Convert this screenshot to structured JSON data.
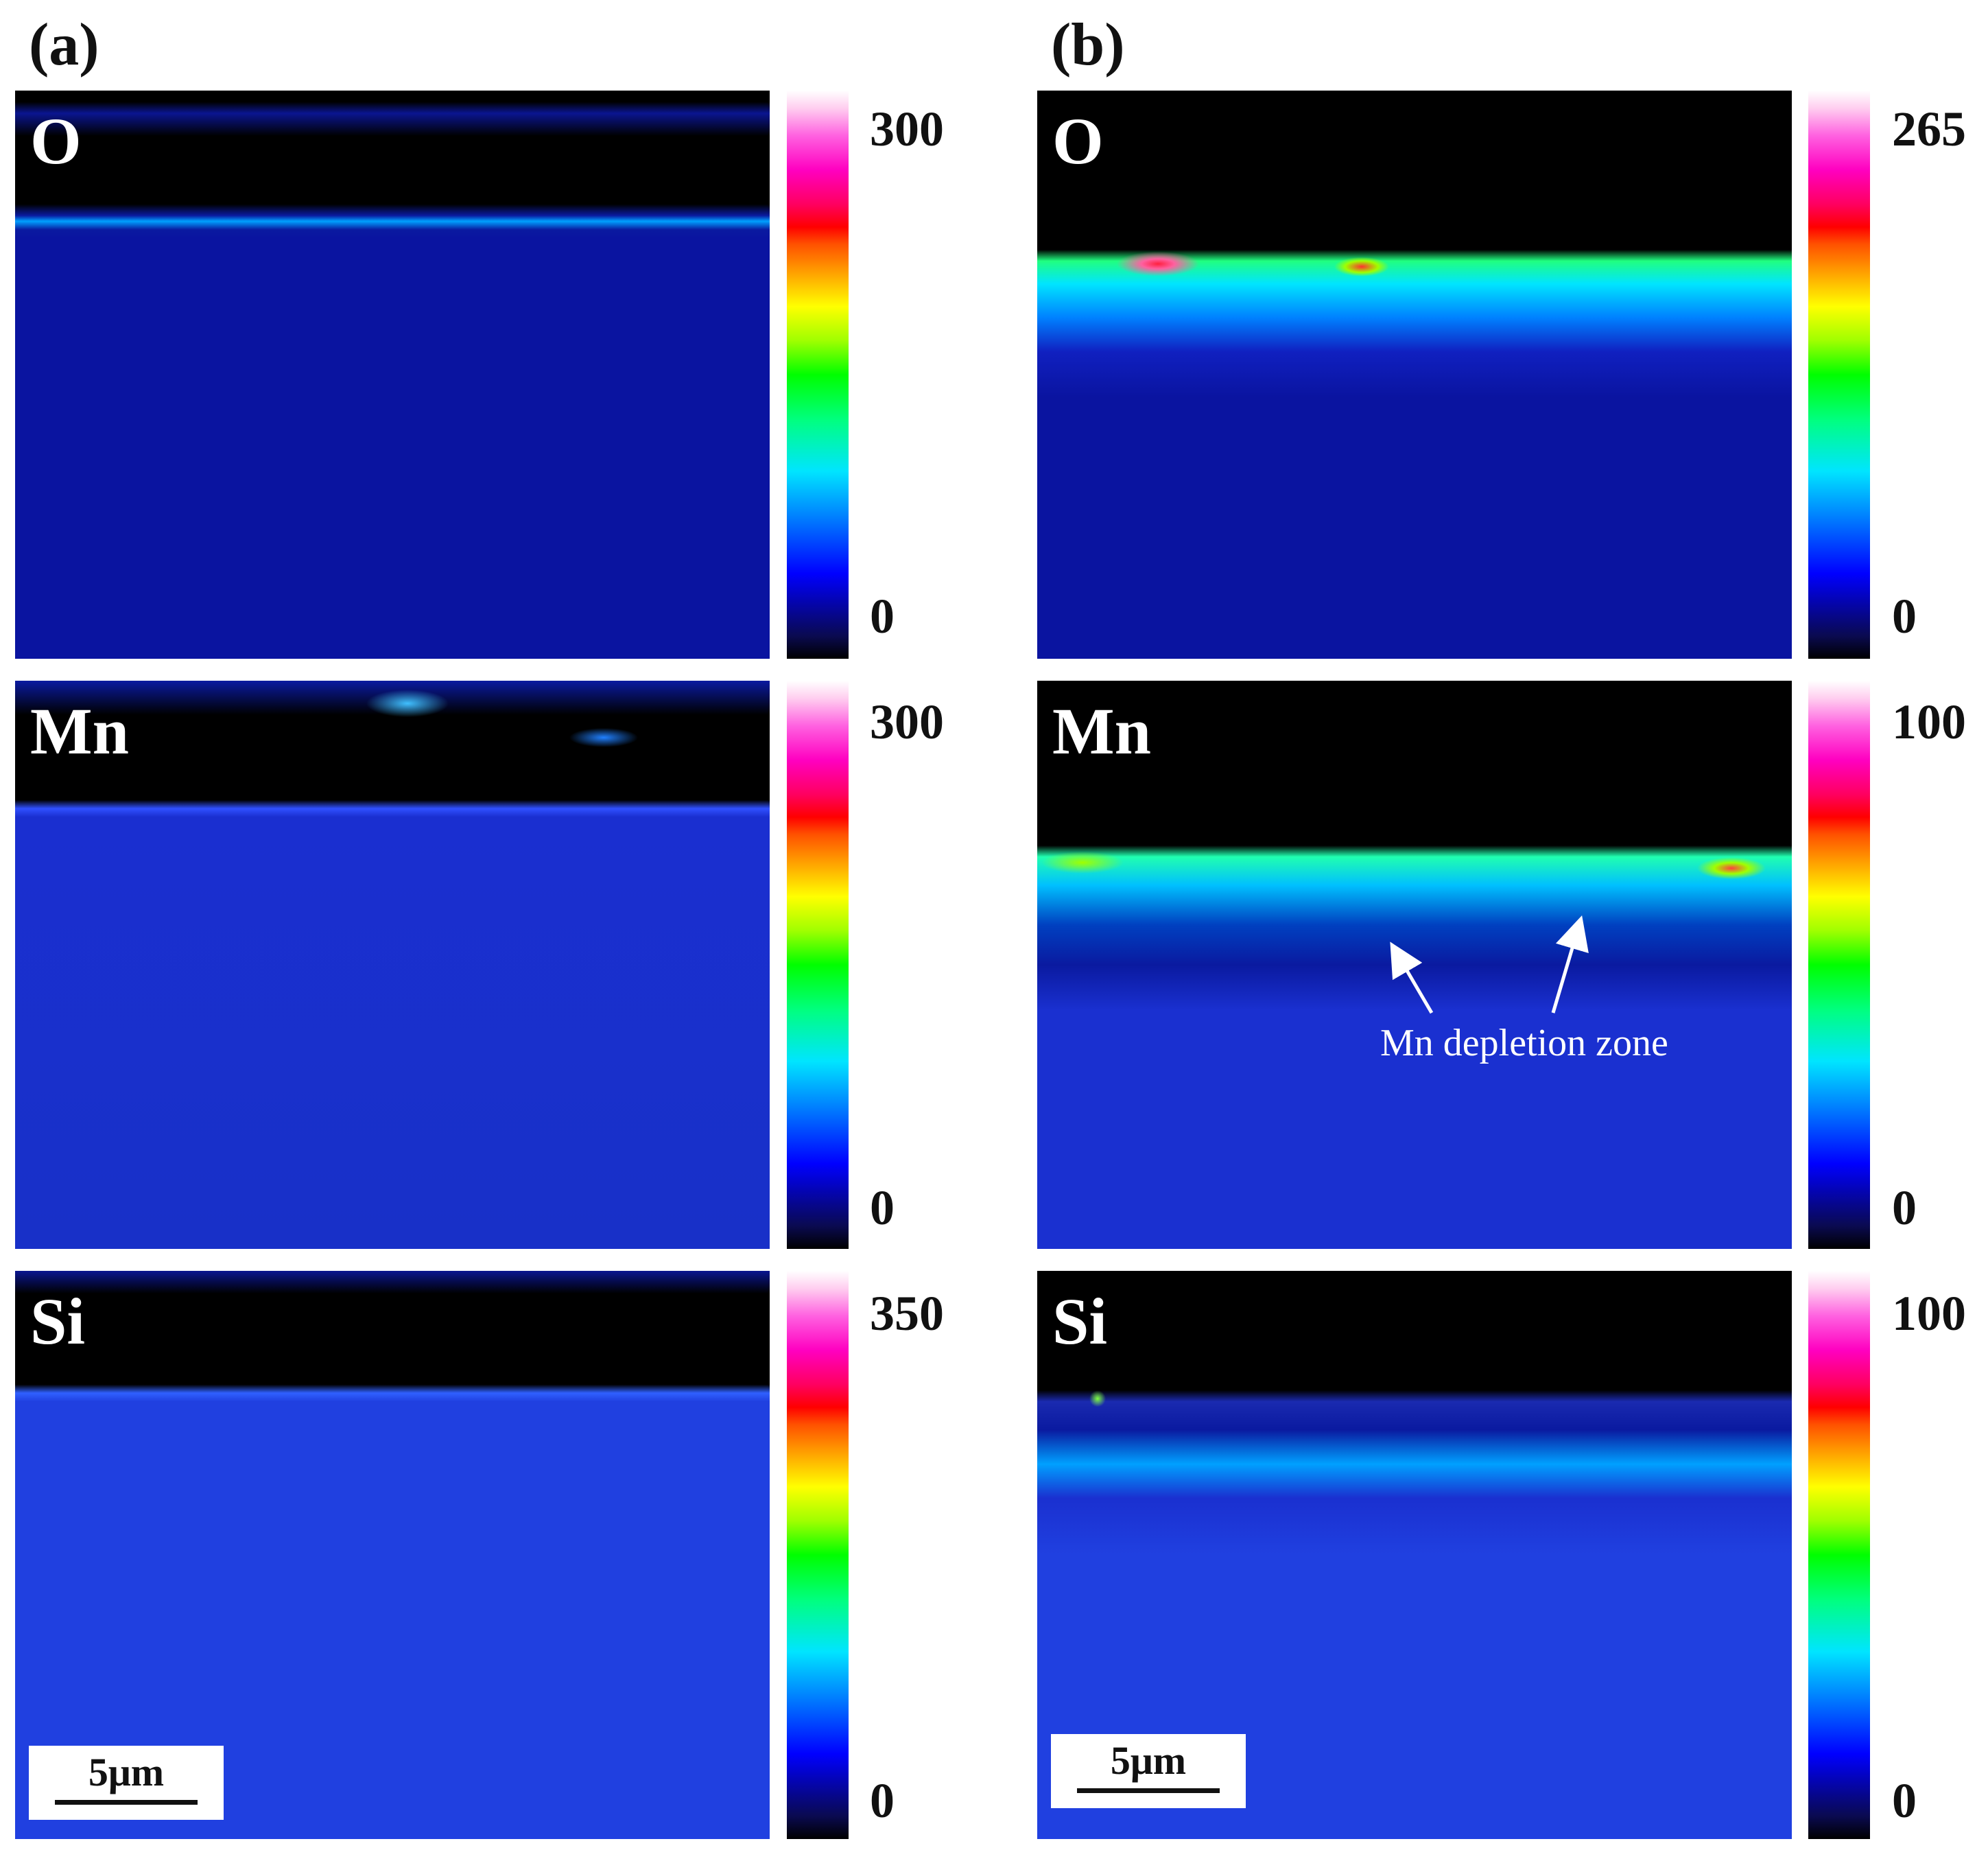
{
  "columns": [
    {
      "label": "(a)"
    },
    {
      "label": "(b)"
    }
  ],
  "panels": {
    "a": [
      {
        "element": "O",
        "cbar_max": "300",
        "cbar_min": "0"
      },
      {
        "element": "Mn",
        "cbar_max": "300",
        "cbar_min": "0"
      },
      {
        "element": "Si",
        "cbar_max": "350",
        "cbar_min": "0"
      }
    ],
    "b": [
      {
        "element": "O",
        "cbar_max": "265",
        "cbar_min": "0"
      },
      {
        "element": "Mn",
        "cbar_max": "100",
        "cbar_min": "0"
      },
      {
        "element": "Si",
        "cbar_max": "100",
        "cbar_min": "0"
      }
    ]
  },
  "scale_bar": {
    "a": "5μm",
    "b": "5μm"
  },
  "annotation": {
    "text": "Mn depletion zone"
  },
  "colors": {
    "background_blue": "#0a14a0",
    "oxide_black": "#000000",
    "highlight_cyan": "#00e5ff",
    "highlight_green": "#00ff40",
    "highlight_red": "#ff2040"
  }
}
